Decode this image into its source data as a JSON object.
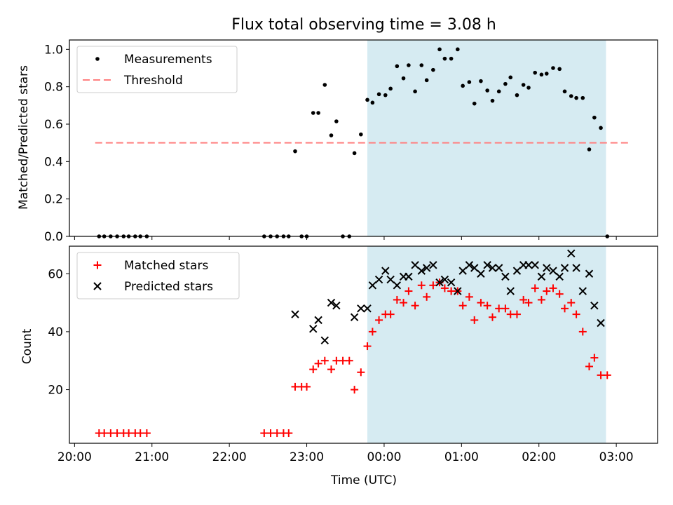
{
  "chart_data": [
    {
      "type": "scatter",
      "title": "Flux total observing time = 3.08 h",
      "xlabel": "",
      "ylabel": "Matched/Predicted stars",
      "ylim": [
        0.0,
        1.05
      ],
      "xlim": [
        "19:56",
        "03:32"
      ],
      "yticks": [
        "0.0",
        "0.2",
        "0.4",
        "0.6",
        "0.8",
        "1.0"
      ],
      "highlight": {
        "x_start": "23:47",
        "x_end": "02:52",
        "color": "#add8e6"
      },
      "threshold": {
        "name": "Threshold",
        "value": 0.5,
        "x_start": "20:16",
        "x_end": "03:10",
        "color": "#ff7f7f"
      },
      "legend": {
        "position": "upper-left",
        "entries": [
          "Measurements",
          "Threshold"
        ]
      },
      "series": [
        {
          "name": "Measurements",
          "color": "#000000",
          "marker": "dot",
          "points": [
            [
              "20:19",
              0.0
            ],
            [
              "20:23",
              0.0
            ],
            [
              "20:28",
              0.0
            ],
            [
              "20:33",
              0.0
            ],
            [
              "20:38",
              0.0
            ],
            [
              "20:42",
              0.0
            ],
            [
              "20:47",
              0.0
            ],
            [
              "20:51",
              0.0
            ],
            [
              "20:56",
              0.0
            ],
            [
              "22:27",
              0.0
            ],
            [
              "22:32",
              0.0
            ],
            [
              "22:37",
              0.0
            ],
            [
              "22:42",
              0.0
            ],
            [
              "22:46",
              0.0
            ],
            [
              "22:51",
              0.455
            ],
            [
              "22:56",
              0.0
            ],
            [
              "23:00",
              0.0
            ],
            [
              "23:05",
              0.66
            ],
            [
              "23:09",
              0.66
            ],
            [
              "23:14",
              0.81
            ],
            [
              "23:19",
              0.54
            ],
            [
              "23:23",
              0.615
            ],
            [
              "23:28",
              0.0
            ],
            [
              "23:33",
              0.0
            ],
            [
              "23:37",
              0.445
            ],
            [
              "23:42",
              0.545
            ],
            [
              "23:47",
              0.73
            ],
            [
              "23:51",
              0.715
            ],
            [
              "23:56",
              0.76
            ],
            [
              "00:01",
              0.755
            ],
            [
              "00:05",
              0.79
            ],
            [
              "00:10",
              0.91
            ],
            [
              "00:15",
              0.845
            ],
            [
              "00:19",
              0.915
            ],
            [
              "00:24",
              0.775
            ],
            [
              "00:29",
              0.915
            ],
            [
              "00:33",
              0.835
            ],
            [
              "00:38",
              0.89
            ],
            [
              "00:43",
              1.0
            ],
            [
              "00:47",
              0.95
            ],
            [
              "00:52",
              0.95
            ],
            [
              "00:57",
              1.0
            ],
            [
              "01:01",
              0.805
            ],
            [
              "01:06",
              0.825
            ],
            [
              "01:10",
              0.71
            ],
            [
              "01:15",
              0.83
            ],
            [
              "01:20",
              0.78
            ],
            [
              "01:24",
              0.725
            ],
            [
              "01:29",
              0.775
            ],
            [
              "01:34",
              0.815
            ],
            [
              "01:38",
              0.85
            ],
            [
              "01:43",
              0.755
            ],
            [
              "01:48",
              0.81
            ],
            [
              "01:52",
              0.795
            ],
            [
              "01:57",
              0.875
            ],
            [
              "02:02",
              0.865
            ],
            [
              "02:06",
              0.87
            ],
            [
              "02:11",
              0.9
            ],
            [
              "02:16",
              0.895
            ],
            [
              "02:20",
              0.775
            ],
            [
              "02:25",
              0.75
            ],
            [
              "02:29",
              0.74
            ],
            [
              "02:34",
              0.74
            ],
            [
              "02:39",
              0.465
            ],
            [
              "02:43",
              0.635
            ],
            [
              "02:48",
              0.58
            ],
            [
              "02:53",
              0.0
            ]
          ]
        }
      ]
    },
    {
      "type": "scatter",
      "title": "",
      "xlabel": "Time (UTC)",
      "ylabel": "Count",
      "ylim": [
        1.5,
        69.5
      ],
      "xlim": [
        "19:56",
        "03:32"
      ],
      "yticks": [
        "20",
        "40",
        "60"
      ],
      "xticks": [
        "20:00",
        "21:00",
        "22:00",
        "23:00",
        "00:00",
        "01:00",
        "02:00",
        "03:00"
      ],
      "highlight": {
        "x_start": "23:47",
        "x_end": "02:52",
        "color": "#add8e6"
      },
      "legend": {
        "position": "upper-left",
        "entries": [
          "Matched stars",
          "Predicted stars"
        ]
      },
      "series": [
        {
          "name": "Matched stars",
          "color": "#ff0000",
          "marker": "plus",
          "points": [
            [
              "20:19",
              5
            ],
            [
              "20:23",
              5
            ],
            [
              "20:28",
              5
            ],
            [
              "20:33",
              5
            ],
            [
              "20:38",
              5
            ],
            [
              "20:42",
              5
            ],
            [
              "20:47",
              5
            ],
            [
              "20:51",
              5
            ],
            [
              "20:56",
              5
            ],
            [
              "22:27",
              5
            ],
            [
              "22:32",
              5
            ],
            [
              "22:37",
              5
            ],
            [
              "22:42",
              5
            ],
            [
              "22:46",
              5
            ],
            [
              "22:51",
              21
            ],
            [
              "22:56",
              21
            ],
            [
              "23:00",
              21
            ],
            [
              "23:05",
              27
            ],
            [
              "23:09",
              29
            ],
            [
              "23:14",
              30
            ],
            [
              "23:19",
              27
            ],
            [
              "23:23",
              30
            ],
            [
              "23:28",
              30
            ],
            [
              "23:33",
              30
            ],
            [
              "23:37",
              20
            ],
            [
              "23:42",
              26
            ],
            [
              "23:47",
              35
            ],
            [
              "23:51",
              40
            ],
            [
              "23:56",
              44
            ],
            [
              "00:01",
              46
            ],
            [
              "00:05",
              46
            ],
            [
              "00:10",
              51
            ],
            [
              "00:15",
              50
            ],
            [
              "00:19",
              54
            ],
            [
              "00:24",
              49
            ],
            [
              "00:29",
              56
            ],
            [
              "00:33",
              52
            ],
            [
              "00:38",
              56
            ],
            [
              "00:43",
              57
            ],
            [
              "00:47",
              55
            ],
            [
              "00:52",
              54
            ],
            [
              "00:57",
              54
            ],
            [
              "01:01",
              49
            ],
            [
              "01:06",
              52
            ],
            [
              "01:10",
              44
            ],
            [
              "01:15",
              50
            ],
            [
              "01:20",
              49
            ],
            [
              "01:24",
              45
            ],
            [
              "01:29",
              48
            ],
            [
              "01:34",
              48
            ],
            [
              "01:38",
              46
            ],
            [
              "01:43",
              46
            ],
            [
              "01:48",
              51
            ],
            [
              "01:52",
              50
            ],
            [
              "01:57",
              55
            ],
            [
              "02:02",
              51
            ],
            [
              "02:06",
              54
            ],
            [
              "02:11",
              55
            ],
            [
              "02:16",
              53
            ],
            [
              "02:20",
              48
            ],
            [
              "02:25",
              50
            ],
            [
              "02:29",
              46
            ],
            [
              "02:34",
              40
            ],
            [
              "02:39",
              28
            ],
            [
              "02:43",
              31
            ],
            [
              "02:48",
              25
            ],
            [
              "02:53",
              25
            ]
          ]
        },
        {
          "name": "Predicted stars",
          "color": "#000000",
          "marker": "x",
          "points": [
            [
              "22:51",
              46
            ],
            [
              "23:05",
              41
            ],
            [
              "23:09",
              44
            ],
            [
              "23:14",
              37
            ],
            [
              "23:19",
              50
            ],
            [
              "23:23",
              49
            ],
            [
              "23:37",
              45
            ],
            [
              "23:42",
              48
            ],
            [
              "23:47",
              48
            ],
            [
              "23:51",
              56
            ],
            [
              "23:56",
              58
            ],
            [
              "00:01",
              61
            ],
            [
              "00:05",
              58
            ],
            [
              "00:10",
              56
            ],
            [
              "00:15",
              59
            ],
            [
              "00:19",
              59
            ],
            [
              "00:24",
              63
            ],
            [
              "00:29",
              61
            ],
            [
              "00:33",
              62
            ],
            [
              "00:38",
              63
            ],
            [
              "00:43",
              57
            ],
            [
              "00:47",
              58
            ],
            [
              "00:52",
              57
            ],
            [
              "00:57",
              54
            ],
            [
              "01:01",
              61
            ],
            [
              "01:06",
              63
            ],
            [
              "01:10",
              62
            ],
            [
              "01:15",
              60
            ],
            [
              "01:20",
              63
            ],
            [
              "01:24",
              62
            ],
            [
              "01:29",
              62
            ],
            [
              "01:34",
              59
            ],
            [
              "01:38",
              54
            ],
            [
              "01:43",
              61
            ],
            [
              "01:48",
              63
            ],
            [
              "01:52",
              63
            ],
            [
              "01:57",
              63
            ],
            [
              "02:02",
              59
            ],
            [
              "02:06",
              62
            ],
            [
              "02:11",
              61
            ],
            [
              "02:16",
              59
            ],
            [
              "02:20",
              62
            ],
            [
              "02:25",
              67
            ],
            [
              "02:29",
              62
            ],
            [
              "02:34",
              54
            ],
            [
              "02:39",
              60
            ],
            [
              "02:43",
              49
            ],
            [
              "02:48",
              43
            ]
          ]
        }
      ]
    }
  ]
}
